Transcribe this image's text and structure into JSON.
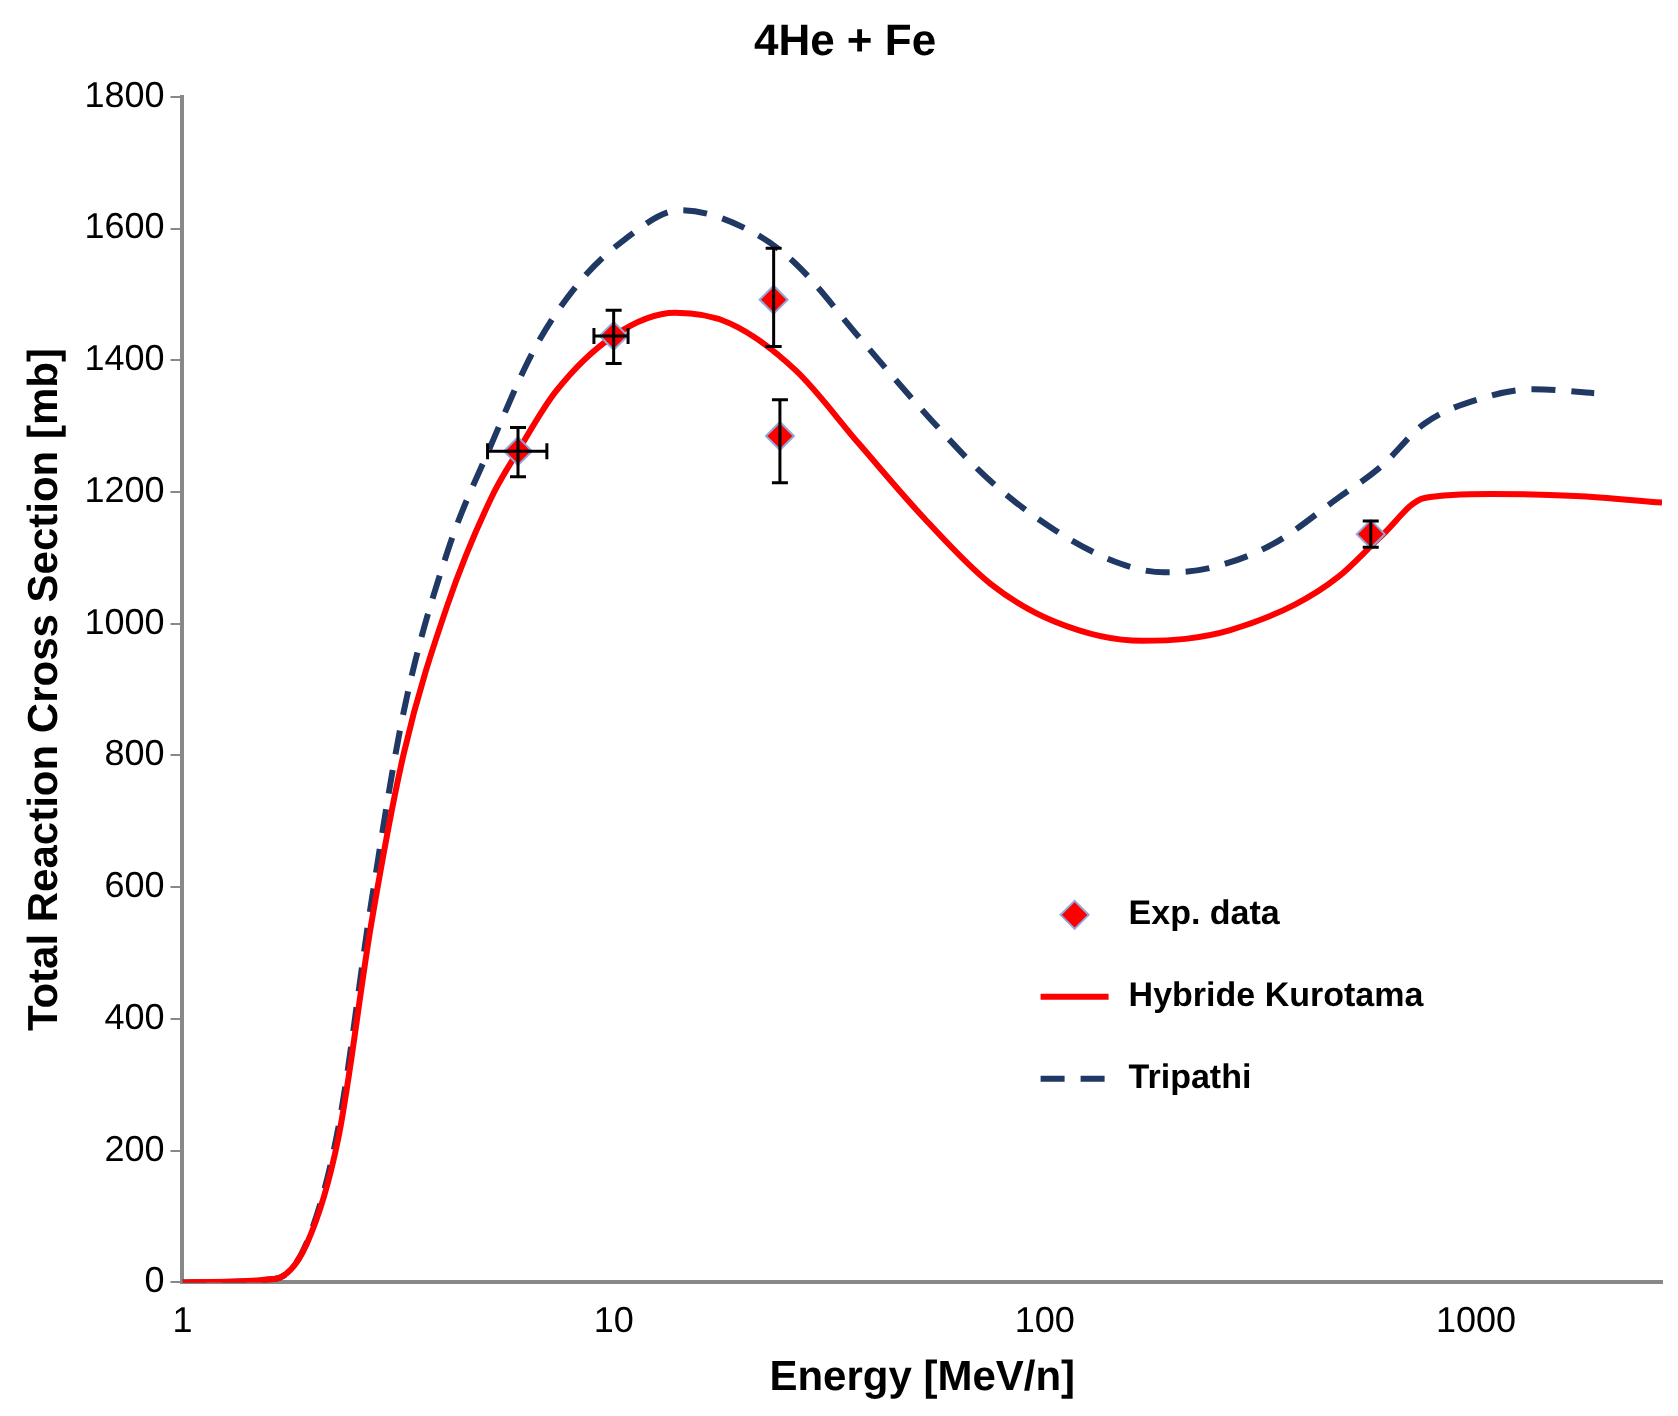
{
  "chart_data": {
    "type": "line",
    "title": "4He + Fe",
    "xlabel": "Energy [MeV/n]",
    "ylabel": "Total Reaction Cross Section [mb]",
    "log": "x",
    "xlim": [
      1,
      2700
    ],
    "xticks": [
      1,
      10,
      100,
      1000
    ],
    "ylim": [
      0,
      1800
    ],
    "yticks": [
      0,
      200,
      400,
      600,
      800,
      1000,
      1200,
      1400,
      1600,
      1800
    ],
    "grid": false,
    "legend": "bottom right",
    "series": [
      {
        "name": "Exp. data",
        "type": "scatter",
        "marker": "diamond",
        "color": "#ff0000",
        "x": [
          6.0,
          10,
          23.5,
          24.3,
          570
        ],
        "values": [
          1262,
          1437,
          1492,
          1285,
          1136
        ],
        "errors": [
          [
            1223,
            1298
          ],
          [
            1395,
            1476
          ],
          [
            1421,
            1570
          ],
          [
            1214,
            1340
          ],
          [
            1116,
            1156
          ]
        ],
        "xerrors": [
          [
            5.1,
            7.0
          ],
          [
            9.0,
            10.8
          ],
          null,
          null,
          null
        ]
      },
      {
        "name": "Hybride Kurotama",
        "line_style": "solid",
        "marker": "none",
        "color": "#ff0000",
        "x": [
          1,
          1.63,
          1.94,
          2.3,
          2.74,
          3.26,
          4.12,
          5.2,
          6.0,
          7.35,
          10,
          13.9,
          18.6,
          26.4,
          37.2,
          52.7,
          74.7,
          105.6,
          168,
          212,
          268,
          380,
          479,
          603,
          760,
          1080,
          1700,
          2700
        ],
        "values": [
          0,
          5,
          58,
          220,
          544,
          803,
          1029,
          1191,
          1262,
          1353,
          1437,
          1472,
          1456,
          1385,
          1272,
          1159,
          1061,
          1003,
          974,
          977,
          990,
          1029,
          1071,
          1133,
          1191,
          1197,
          1194,
          1184
        ]
      },
      {
        "name": "Tripathi",
        "line_style": "dashed",
        "marker": "none",
        "color": "#1f3864",
        "x": [
          1,
          1.63,
          1.94,
          2.3,
          2.74,
          3.26,
          4.12,
          5.2,
          6.55,
          8.25,
          10.4,
          14.3,
          20.8,
          26.4,
          37.2,
          52.7,
          74.7,
          105.6,
          150,
          189,
          239,
          336,
          479,
          603,
          760,
          1080,
          1360,
          1880
        ],
        "values": [
          0,
          5,
          60,
          236,
          576,
          867,
          1110,
          1272,
          1417,
          1515,
          1579,
          1628,
          1596,
          1547,
          1434,
          1320,
          1217,
          1142,
          1091,
          1078,
          1084,
          1120,
          1191,
          1239,
          1304,
          1346,
          1356,
          1350
        ]
      }
    ]
  }
}
